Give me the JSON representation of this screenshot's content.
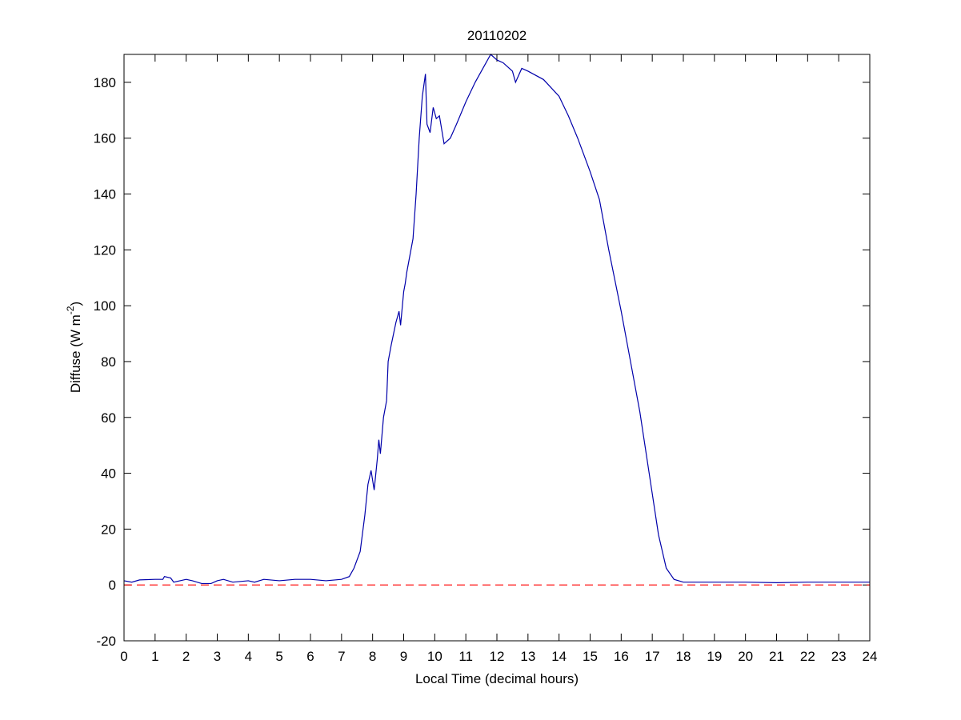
{
  "chart_data": {
    "type": "line",
    "title": "20110202",
    "xlabel": "Local Time (decimal hours)",
    "ylabel_parts": [
      "Diffuse (W m",
      "-2",
      ")"
    ],
    "series": [
      {
        "color": "#0000aa",
        "style": "solid",
        "x": [
          0,
          0.25,
          0.5,
          1,
          1.25,
          1.3,
          1.5,
          1.6,
          2,
          2.2,
          2.5,
          2.8,
          3,
          3.2,
          3.5,
          4,
          4.2,
          4.5,
          5,
          5.5,
          6,
          6.5,
          7,
          7.25,
          7.4,
          7.6,
          7.75,
          7.85,
          7.95,
          8.05,
          8.15,
          8.2,
          8.25,
          8.35,
          8.45,
          8.5,
          8.6,
          8.75,
          8.85,
          8.9,
          9.0,
          9.05,
          9.1,
          9.3,
          9.4,
          9.5,
          9.6,
          9.7,
          9.75,
          9.85,
          9.95,
          10.05,
          10.15,
          10.3,
          10.5,
          10.7,
          11,
          11.3,
          11.6,
          11.8,
          12,
          12.2,
          12.5,
          12.6,
          12.8,
          13,
          13.5,
          14,
          14.3,
          14.6,
          15,
          15.3,
          15.6,
          16,
          16.3,
          16.6,
          16.9,
          17.2,
          17.45,
          17.7,
          18,
          19,
          20,
          21,
          22,
          24
        ],
        "values": [
          1.5,
          1,
          1.8,
          2,
          2,
          3,
          2.5,
          1,
          2,
          1.5,
          0.5,
          0.5,
          1.5,
          2,
          1,
          1.5,
          1,
          2,
          1.5,
          2,
          2,
          1.5,
          2,
          3,
          6,
          12,
          25,
          36,
          41,
          34,
          45,
          52,
          47,
          60,
          66,
          80,
          86,
          94,
          98,
          93,
          105,
          108,
          112,
          124,
          140,
          160,
          175,
          183,
          165,
          162,
          171,
          167,
          168,
          158,
          160,
          165,
          173,
          180,
          186,
          190,
          188,
          187,
          184,
          180,
          185,
          184,
          181,
          175,
          168,
          160,
          148,
          138,
          120,
          98,
          80,
          62,
          40,
          18,
          6,
          2,
          1,
          1,
          1,
          0.8,
          1,
          1
        ]
      },
      {
        "color": "#ff0000",
        "style": "dashed",
        "x": [
          0,
          24
        ],
        "values": [
          0,
          0
        ]
      }
    ],
    "xlim": [
      0,
      24
    ],
    "xticks": [
      0,
      1,
      2,
      3,
      4,
      5,
      6,
      7,
      8,
      9,
      10,
      11,
      12,
      13,
      14,
      15,
      16,
      17,
      18,
      19,
      20,
      21,
      22,
      23,
      24
    ],
    "ylim": [
      -20,
      190
    ],
    "yticks": [
      -20,
      0,
      20,
      40,
      60,
      80,
      100,
      120,
      140,
      160,
      180
    ],
    "grid": false
  }
}
